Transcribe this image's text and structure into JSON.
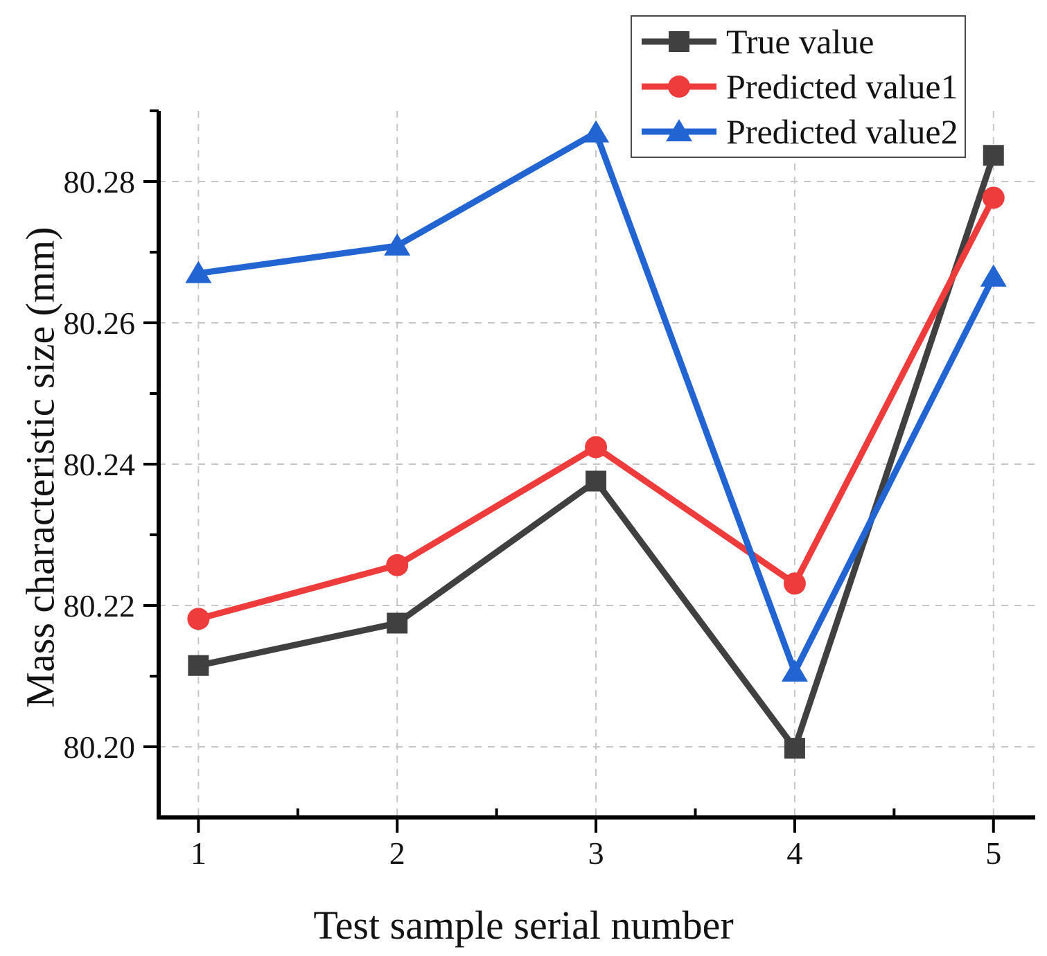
{
  "figure": {
    "background": "#ffffff"
  },
  "chart_data": {
    "type": "line",
    "title": "",
    "xlabel": "Test sample serial number",
    "ylabel": "Mass characteristic size (mm)",
    "x": [
      1,
      2,
      3,
      4,
      5
    ],
    "xlim": [
      0.8,
      5.21
    ],
    "ylim": [
      80.19,
      80.29
    ],
    "x_major_ticks": [
      1,
      2,
      3,
      4,
      5
    ],
    "x_tick_labels": [
      "1",
      "2",
      "3",
      "4",
      "5"
    ],
    "x_minor_ticks": [
      1.5,
      2.5,
      3.5,
      4.5
    ],
    "y_major_ticks": [
      80.2,
      80.22,
      80.24,
      80.26,
      80.28
    ],
    "y_tick_labels": [
      "80.20",
      "80.22",
      "80.24",
      "80.26",
      "80.28"
    ],
    "y_minor_ticks": [
      80.21,
      80.23,
      80.25,
      80.27,
      80.29
    ],
    "grid": true,
    "legend_position": "top-right",
    "series": [
      {
        "name": "True value",
        "color": "#404040",
        "marker": "square",
        "values": [
          80.2115,
          80.2175,
          80.2376,
          80.1998,
          80.2837
        ]
      },
      {
        "name": "Predicted value1",
        "color": "#ee3b3c",
        "marker": "circle",
        "values": [
          80.2181,
          80.2257,
          80.2424,
          80.2231,
          80.2777
        ]
      },
      {
        "name": "Predicted value2",
        "color": "#2164d2",
        "marker": "triangle-up",
        "values": [
          80.267,
          80.2709,
          80.2869,
          80.2106,
          80.2665
        ]
      }
    ],
    "axis_color": "#000000",
    "grid_color": "#c6c6c6",
    "text_color": "#131313"
  }
}
